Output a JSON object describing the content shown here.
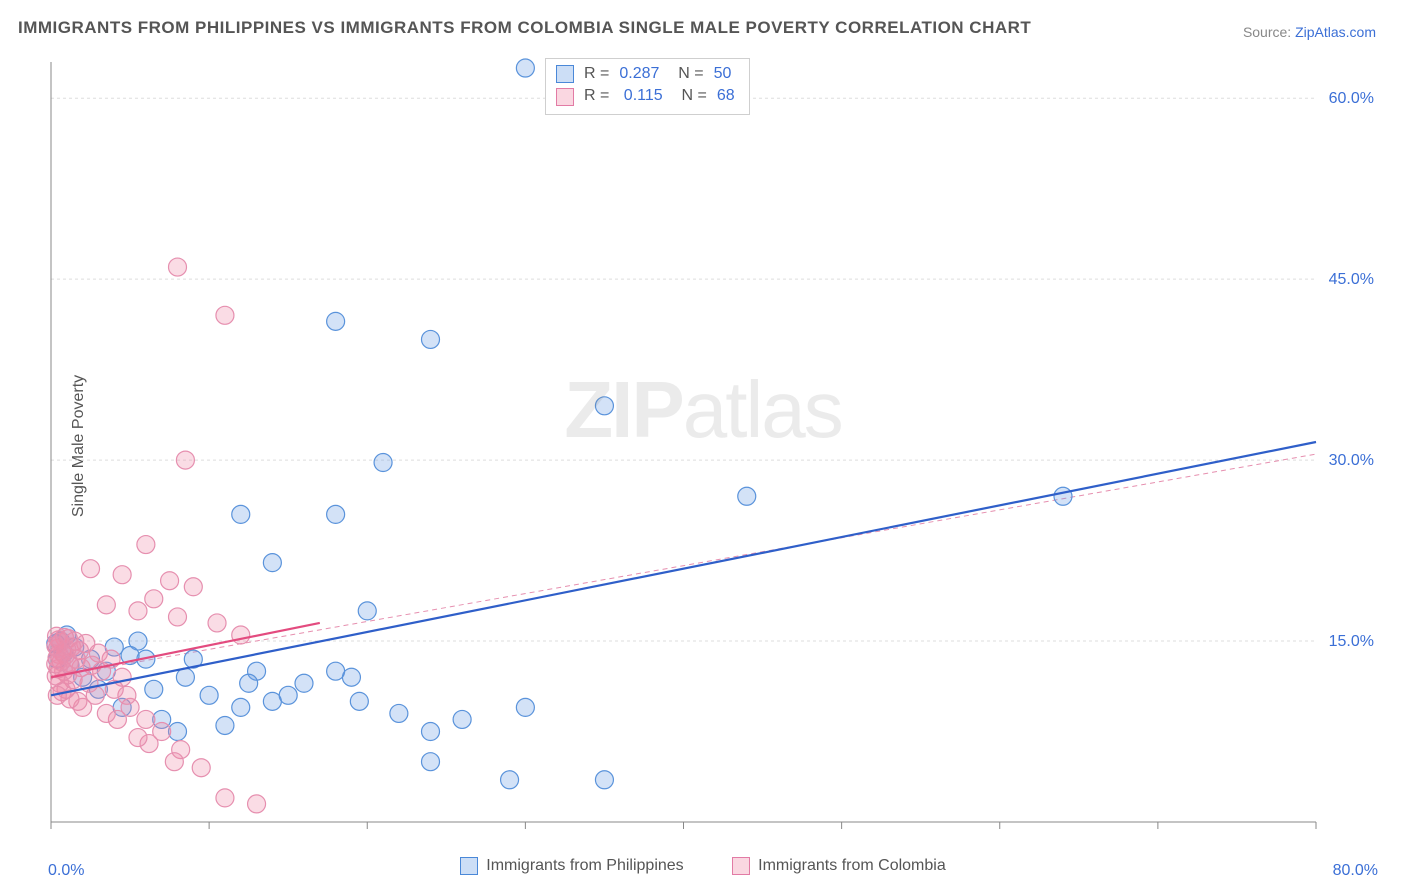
{
  "title": "IMMIGRANTS FROM PHILIPPINES VS IMMIGRANTS FROM COLOMBIA SINGLE MALE POVERTY CORRELATION CHART",
  "source": {
    "label": "Source: ",
    "link": "ZipAtlas.com"
  },
  "ylabel": "Single Male Poverty",
  "watermark": {
    "bold": "ZIP",
    "rest": "atlas"
  },
  "chart": {
    "type": "scatter",
    "xlim": [
      0,
      80
    ],
    "ylim": [
      0,
      63
    ],
    "xticks": [
      0,
      10,
      20,
      30,
      40,
      50,
      60,
      70,
      80
    ],
    "yticks": [
      15,
      30,
      45,
      60
    ],
    "ytick_labels": [
      "15.0%",
      "30.0%",
      "45.0%",
      "60.0%"
    ],
    "x_axis_labels": {
      "min": "0.0%",
      "max": "80.0%"
    },
    "background_color": "#ffffff",
    "grid_color": "#dddddd",
    "axis_color": "#888888",
    "tick_font_size": 16,
    "tick_color": "#3b6fd6",
    "marker_radius": 9,
    "marker_stroke_width": 1.2,
    "series": [
      {
        "name": "Immigrants from Philippines",
        "fill": "rgba(108,160,230,0.30)",
        "stroke": "#5a93db",
        "trend_solid": {
          "x1": 0,
          "y1": 10.5,
          "x2": 80,
          "y2": 31.5,
          "color": "#2f5fc9",
          "width": 2.2
        },
        "trend_dash": {
          "x1": 0,
          "y1": 10.5,
          "x2": 80,
          "y2": 31.5,
          "color": "#5a93db",
          "width": 1
        },
        "stats": {
          "R": "0.287",
          "N": "50"
        },
        "points": [
          [
            30,
            62.5
          ],
          [
            18,
            41.5
          ],
          [
            24,
            40
          ],
          [
            21,
            29.8
          ],
          [
            20,
            17.5
          ],
          [
            18,
            25.5
          ],
          [
            14,
            21.5
          ],
          [
            12,
            25.5
          ],
          [
            35,
            34.5
          ],
          [
            44,
            27
          ],
          [
            64,
            27
          ],
          [
            30,
            9.5
          ],
          [
            29,
            3.5
          ],
          [
            35,
            3.5
          ],
          [
            24,
            7.5
          ],
          [
            22,
            9
          ],
          [
            26,
            8.5
          ],
          [
            24,
            5
          ],
          [
            19.5,
            10
          ],
          [
            19,
            12
          ],
          [
            18,
            12.5
          ],
          [
            16,
            11.5
          ],
          [
            15,
            10.5
          ],
          [
            14,
            10
          ],
          [
            13,
            12.5
          ],
          [
            12,
            9.5
          ],
          [
            12.5,
            11.5
          ],
          [
            11,
            8
          ],
          [
            10,
            10.5
          ],
          [
            9,
            13.5
          ],
          [
            8.5,
            12
          ],
          [
            8,
            7.5
          ],
          [
            7,
            8.5
          ],
          [
            6.5,
            11
          ],
          [
            6,
            13.5
          ],
          [
            5.5,
            15
          ],
          [
            5,
            13.8
          ],
          [
            4.5,
            9.5
          ],
          [
            4,
            14.5
          ],
          [
            3.5,
            12.5
          ],
          [
            3,
            11
          ],
          [
            2.5,
            13.5
          ],
          [
            2,
            12
          ],
          [
            1.5,
            14.5
          ],
          [
            1.2,
            13
          ],
          [
            1,
            15.5
          ],
          [
            0.8,
            14
          ],
          [
            0.6,
            15
          ],
          [
            0.4,
            13.5
          ],
          [
            0.3,
            14.8
          ]
        ]
      },
      {
        "name": "Immigrants from Colombia",
        "fill": "rgba(240,140,170,0.30)",
        "stroke": "#e68faf",
        "trend_solid": {
          "x1": 0,
          "y1": 12,
          "x2": 17,
          "y2": 16.5,
          "color": "#e34b7f",
          "width": 2.2
        },
        "trend_dash": {
          "x1": 0,
          "y1": 12,
          "x2": 80,
          "y2": 30.5,
          "color": "#e68faf",
          "width": 1
        },
        "stats": {
          "R": "0.115",
          "N": "68"
        },
        "points": [
          [
            8,
            46
          ],
          [
            11,
            42
          ],
          [
            8.5,
            30
          ],
          [
            6,
            23
          ],
          [
            7.5,
            20
          ],
          [
            9,
            19.5
          ],
          [
            6.5,
            18.5
          ],
          [
            4.5,
            20.5
          ],
          [
            3.5,
            18
          ],
          [
            2.5,
            21
          ],
          [
            5.5,
            17.5
          ],
          [
            8,
            17
          ],
          [
            10.5,
            16.5
          ],
          [
            12,
            15.5
          ],
          [
            13,
            1.5
          ],
          [
            11,
            2
          ],
          [
            9.5,
            4.5
          ],
          [
            8.2,
            6
          ],
          [
            7.8,
            5
          ],
          [
            7,
            7.5
          ],
          [
            6.2,
            6.5
          ],
          [
            6,
            8.5
          ],
          [
            5.5,
            7
          ],
          [
            5,
            9.5
          ],
          [
            4.8,
            10.5
          ],
          [
            4.5,
            12
          ],
          [
            4.2,
            8.5
          ],
          [
            4,
            11
          ],
          [
            3.8,
            13.5
          ],
          [
            3.5,
            9
          ],
          [
            3.2,
            12.5
          ],
          [
            3,
            14
          ],
          [
            2.8,
            10.5
          ],
          [
            2.6,
            13
          ],
          [
            2.4,
            11.5
          ],
          [
            2.2,
            14.8
          ],
          [
            2,
            9.5
          ],
          [
            1.9,
            12.8
          ],
          [
            1.8,
            14.2
          ],
          [
            1.7,
            10
          ],
          [
            1.6,
            13.5
          ],
          [
            1.5,
            15
          ],
          [
            1.4,
            11.8
          ],
          [
            1.3,
            14.5
          ],
          [
            1.2,
            10.2
          ],
          [
            1.15,
            13.2
          ],
          [
            1.1,
            15.2
          ],
          [
            1.05,
            12.2
          ],
          [
            1,
            14.3
          ],
          [
            0.95,
            11
          ],
          [
            0.9,
            13.8
          ],
          [
            0.85,
            15.3
          ],
          [
            0.8,
            12.5
          ],
          [
            0.75,
            14
          ],
          [
            0.7,
            10.8
          ],
          [
            0.65,
            13.3
          ],
          [
            0.6,
            14.9
          ],
          [
            0.55,
            11.5
          ],
          [
            0.5,
            13.9
          ],
          [
            0.48,
            15.1
          ],
          [
            0.45,
            12.7
          ],
          [
            0.42,
            14.4
          ],
          [
            0.4,
            10.5
          ],
          [
            0.38,
            13.6
          ],
          [
            0.35,
            15.4
          ],
          [
            0.33,
            12.1
          ],
          [
            0.31,
            14.6
          ],
          [
            0.3,
            13.1
          ]
        ]
      }
    ],
    "legend": {
      "position": "bottom-center",
      "items": [
        {
          "label": "Immigrants from Philippines",
          "swatch": "blue"
        },
        {
          "label": "Immigrants from Colombia",
          "swatch": "pink"
        }
      ]
    }
  }
}
